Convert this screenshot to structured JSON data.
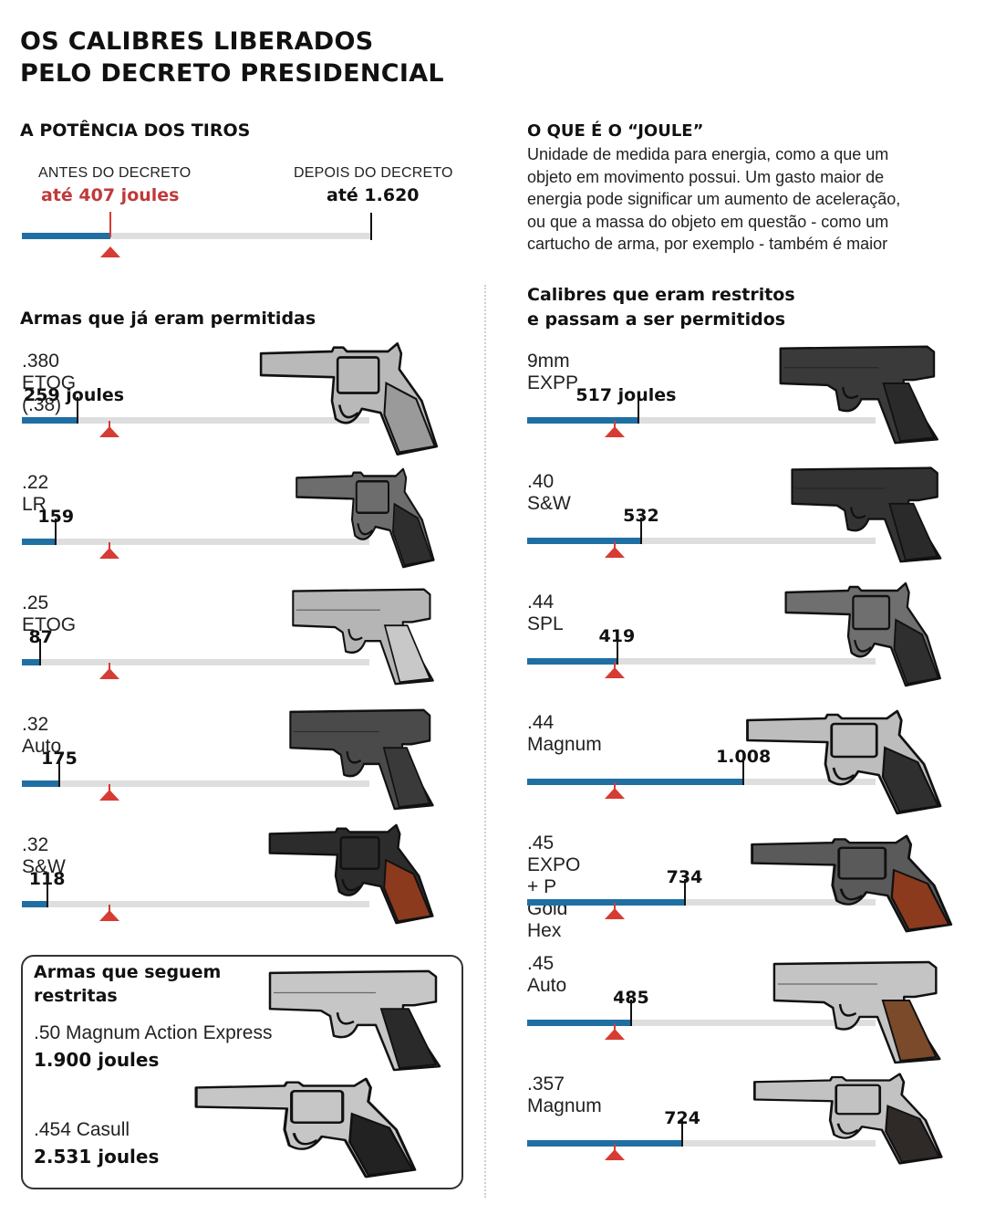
{
  "title": {
    "line1": "OS CALIBRES LIBERADOS",
    "line2": "PELO DECRETO PRESIDENCIAL"
  },
  "power": {
    "heading": "A POTÊNCIA DOS TIROS",
    "before_label": "ANTES DO DECRETO",
    "before_value": "até 407 joules",
    "after_label": "DEPOIS DO DECRETO",
    "after_value": "até 1.620"
  },
  "joule_info": {
    "heading": "O QUE É O “JOULE”",
    "lines": [
      "Unidade de medida para energia, como a que um",
      "objeto em movimento possui. Um gasto maior de",
      "energia pode significar um aumento de aceleração,",
      "ou que a massa do objeto em questão - como um",
      "cartucho de arma, por exemplo - também é maior"
    ]
  },
  "allowed": {
    "heading": "Armas que já eram permitidas",
    "items": [
      {
        "name": ".380 ETOG (.38)",
        "label": "259 joules",
        "joules": 259
      },
      {
        "name": ".22 LR",
        "label": "159",
        "joules": 159
      },
      {
        "name": ".25 ETOG",
        "label": "87",
        "joules": 87
      },
      {
        "name": ".32 Auto",
        "label": "175",
        "joules": 175
      },
      {
        "name": ".32 S&W",
        "label": "118",
        "joules": 118
      }
    ]
  },
  "newly_allowed": {
    "heading_line1": "Calibres que eram restritos",
    "heading_line2": "e passam a ser permitidos",
    "items": [
      {
        "name": "9mm EXPP",
        "label": "517 joules",
        "joules": 517
      },
      {
        "name": ".40 S&W",
        "label": "532",
        "joules": 532
      },
      {
        "name": ".44 SPL",
        "label": "419",
        "joules": 419
      },
      {
        "name": ".44 Magnum",
        "label": "1.008",
        "joules": 1008
      },
      {
        "name": ".45 EXPO + P Gold Hex",
        "label": "734",
        "joules": 734
      },
      {
        "name": ".45 Auto",
        "label": "485",
        "joules": 485
      },
      {
        "name": ".357 Magnum",
        "label": "724",
        "joules": 724
      }
    ]
  },
  "restricted": {
    "heading_line1": "Armas que seguem",
    "heading_line2": "restritas",
    "items": [
      {
        "name": ".50 Magnum Action Express",
        "label": "1.900 joules",
        "joules": 1900
      },
      {
        "name": ".454 Casull",
        "label": "2.531 joules",
        "joules": 2531
      }
    ]
  },
  "colors": {
    "fill": "#1f6fa3",
    "track": "#dedede",
    "marker": "#d63c33",
    "before_text": "#c0393b"
  },
  "chart_data": [
    {
      "type": "bar",
      "title": "A POTÊNCIA DOS TIROS",
      "categories": [
        "Antes do decreto",
        "Depois do decreto"
      ],
      "values": [
        407,
        1620
      ],
      "ylabel": "joules",
      "ylim": [
        0,
        1620
      ]
    },
    {
      "type": "bar",
      "title": "Armas que já eram permitidas",
      "categories": [
        ".380 ETOG (.38)",
        ".22 LR",
        ".25 ETOG",
        ".32 Auto",
        ".32 S&W"
      ],
      "values": [
        259,
        159,
        87,
        175,
        118
      ],
      "ylabel": "joules",
      "reference_line": 407,
      "ylim": [
        0,
        1620
      ]
    },
    {
      "type": "bar",
      "title": "Calibres que eram restritos e passam a ser permitidos",
      "categories": [
        "9mm EXPP",
        ".40 S&W",
        ".44 SPL",
        ".44 Magnum",
        ".45 EXPO + P Gold Hex",
        ".45 Auto",
        ".357 Magnum"
      ],
      "values": [
        517,
        532,
        419,
        1008,
        734,
        485,
        724
      ],
      "ylabel": "joules",
      "reference_line": 407,
      "ylim": [
        0,
        1620
      ]
    },
    {
      "type": "table",
      "title": "Armas que seguem restritas",
      "categories": [
        ".50 Magnum Action Express",
        ".454 Casull"
      ],
      "values": [
        1900,
        2531
      ],
      "ylabel": "joules"
    }
  ]
}
